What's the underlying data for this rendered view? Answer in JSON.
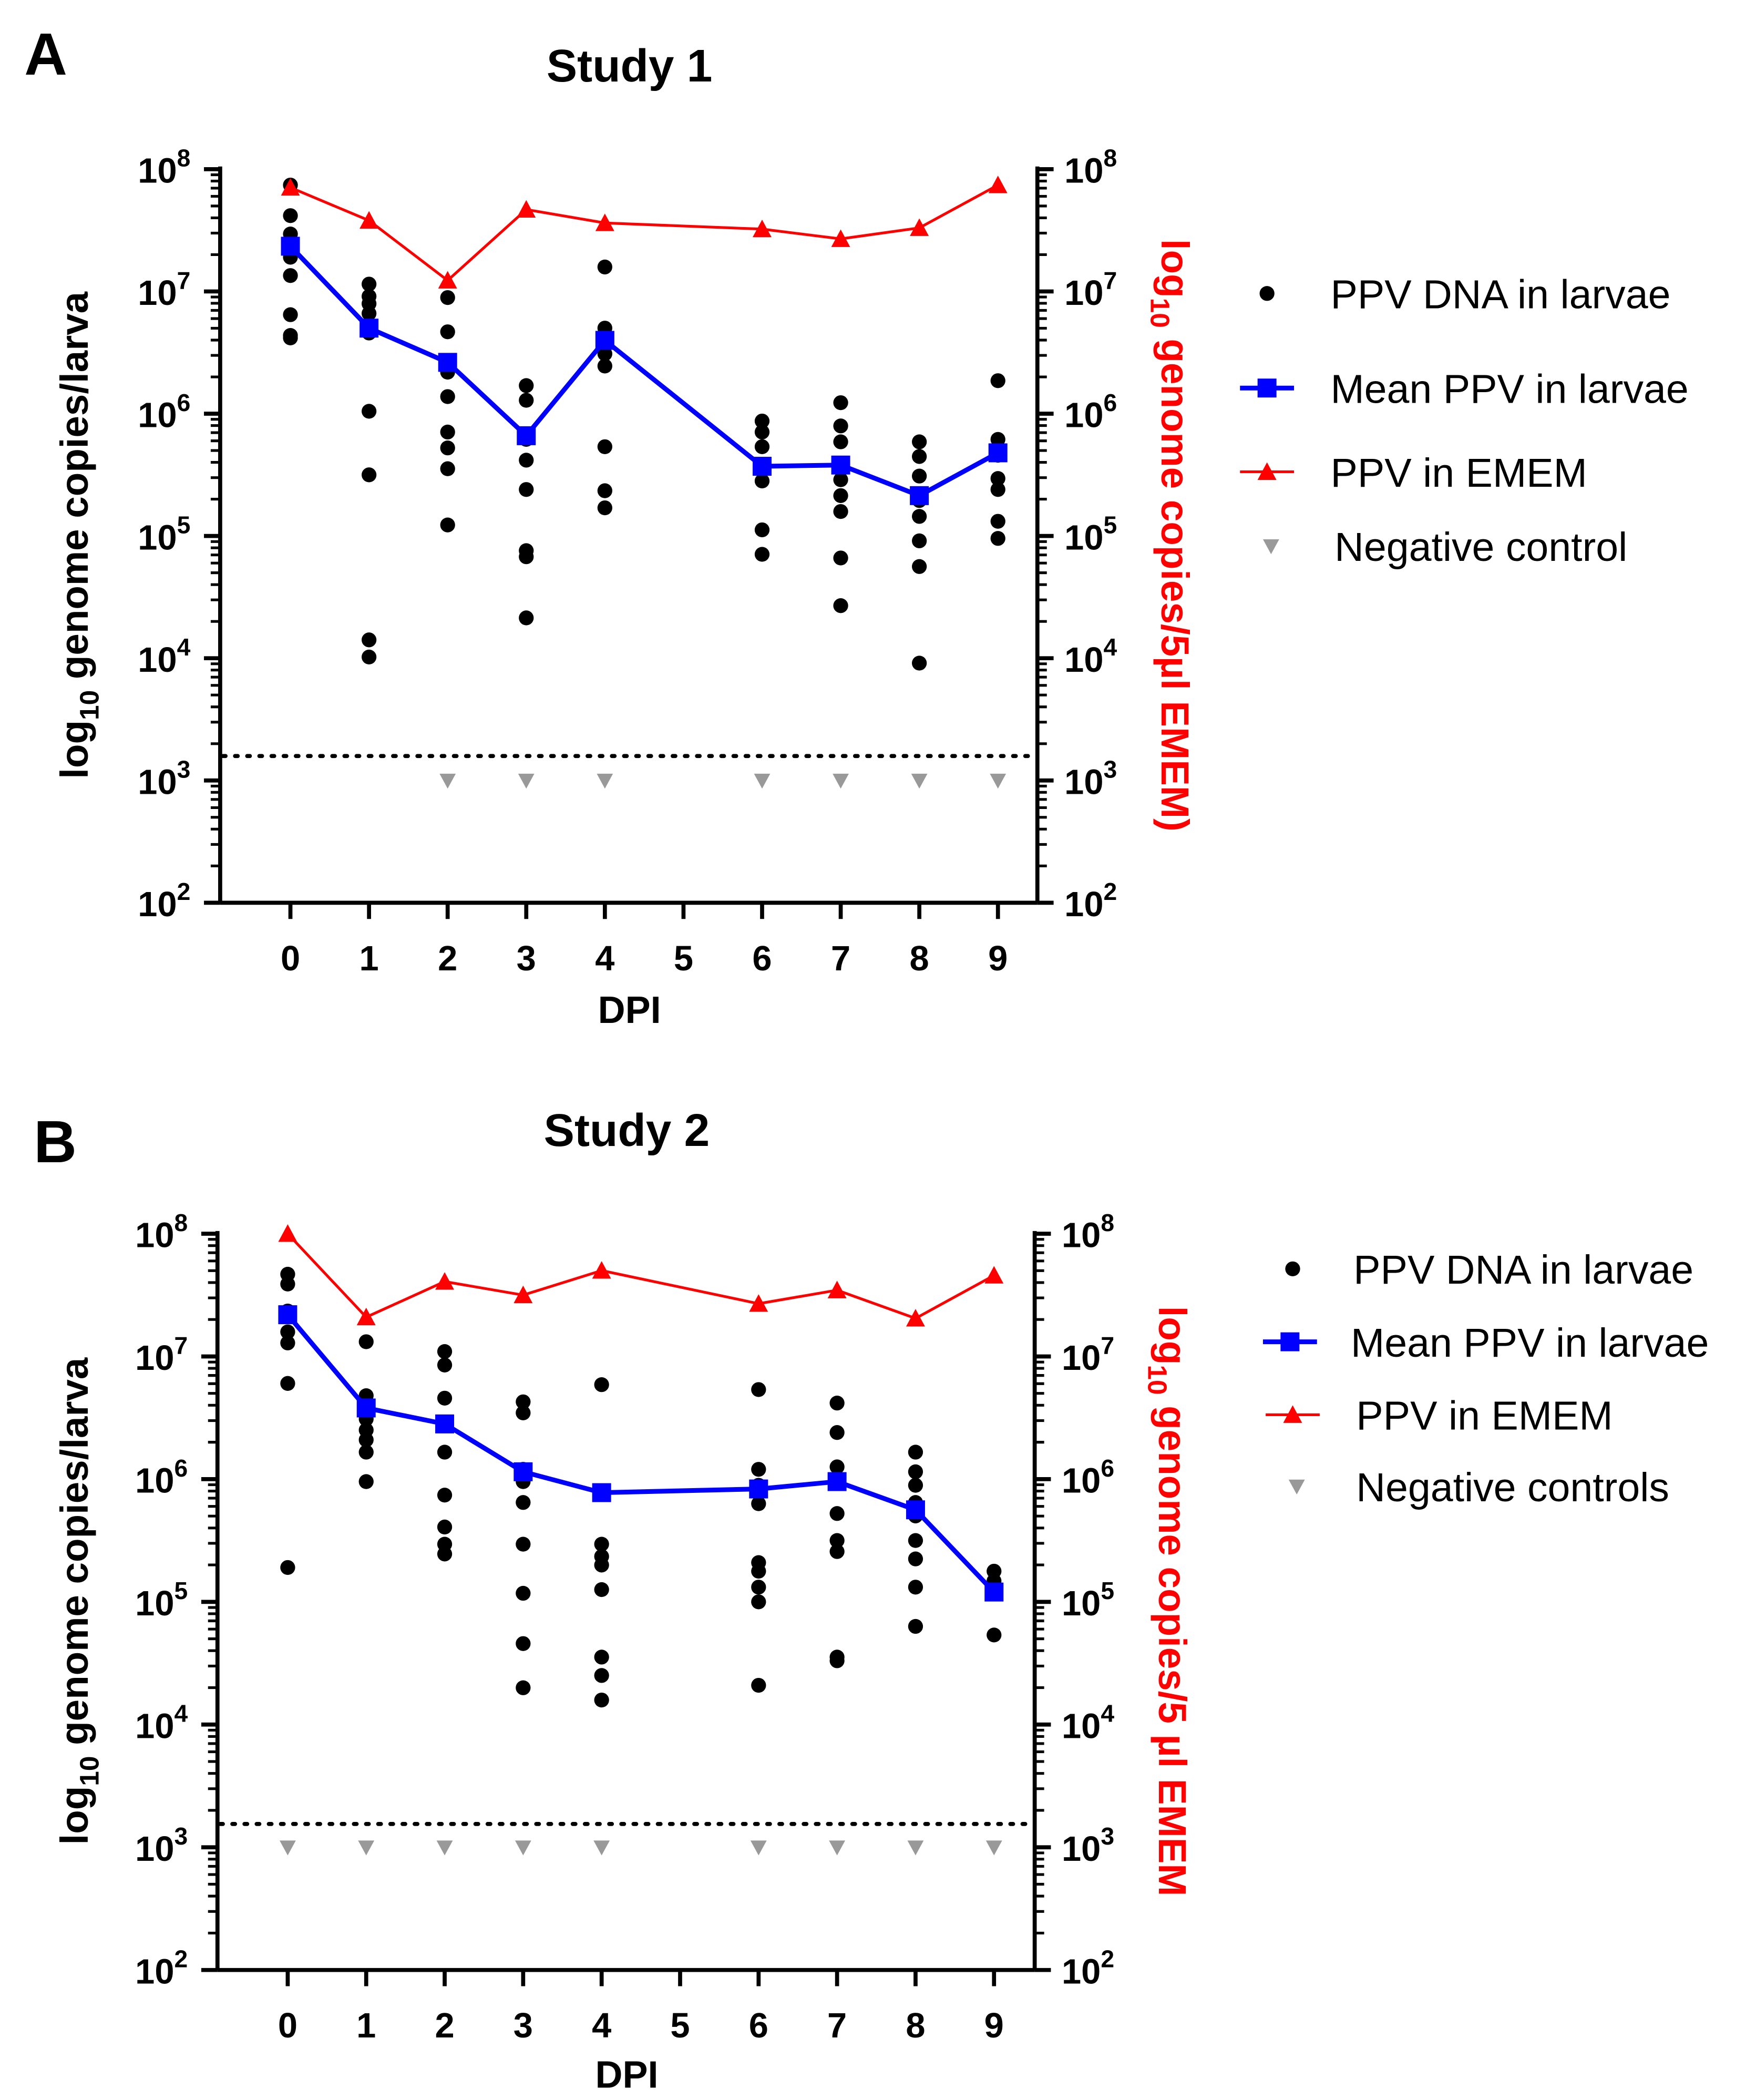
{
  "colors": {
    "points": "#000000",
    "mean": "#0000ff",
    "emem": "#ff0000",
    "negative": "#999999",
    "right_axis_label": "#ff0000"
  },
  "chart_data": [
    {
      "panel_letter": "A",
      "type": "scatter",
      "title": "Study 1",
      "xlabel": "DPI",
      "ylabel": {
        "prefix": "log",
        "sub": "10",
        "rest": " genome copies/larva"
      },
      "ylabel_right": {
        "prefix": "log",
        "sub": "10",
        "rest": " genome copies/5µl EMEM)"
      },
      "x_ticks": [
        "0",
        "1",
        "2",
        "3",
        "4",
        "5",
        "6",
        "7",
        "8",
        "9"
      ],
      "y_scale": "log",
      "ylim": [
        100,
        100000000
      ],
      "y_ticks": [
        {
          "base": "10",
          "exp": "2"
        },
        {
          "base": "10",
          "exp": "3"
        },
        {
          "base": "10",
          "exp": "4"
        },
        {
          "base": "10",
          "exp": "5"
        },
        {
          "base": "10",
          "exp": "6"
        },
        {
          "base": "10",
          "exp": "7"
        },
        {
          "base": "10",
          "exp": "8"
        }
      ],
      "detection_limit_log10": 3.2,
      "legend": [
        {
          "label": "PPV DNA in larvae",
          "marker": "circle"
        },
        {
          "label": "Mean PPV in larvae",
          "marker": "square-line"
        },
        {
          "label": "PPV in EMEM",
          "marker": "triangle-line"
        },
        {
          "label": "Negative control",
          "marker": "triangle-down"
        }
      ],
      "series": {
        "larvae_log10": {
          "0": [
            7.87,
            7.62,
            7.47,
            7.36,
            7.28,
            7.13,
            6.81,
            6.64,
            6.62
          ],
          "1": [
            7.06,
            6.96,
            6.9,
            6.82,
            6.66,
            6.02,
            5.5,
            4.15,
            4.01
          ],
          "2": [
            6.95,
            6.67,
            6.34,
            6.14,
            5.85,
            5.72,
            5.55,
            5.09
          ],
          "3": [
            6.23,
            6.11,
            5.79,
            5.62,
            5.38,
            4.88,
            4.83,
            4.33
          ],
          "4": [
            7.2,
            6.7,
            6.62,
            6.49,
            6.39,
            5.73,
            5.37,
            5.23
          ],
          "6": [
            5.94,
            5.85,
            5.73,
            5.58,
            5.45,
            5.05,
            4.85
          ],
          "7": [
            6.09,
            5.9,
            5.77,
            5.57,
            5.46,
            5.33,
            5.2,
            4.82,
            4.43
          ],
          "8": [
            5.77,
            5.65,
            5.49,
            5.29,
            5.16,
            4.96,
            4.75,
            3.96
          ],
          "9": [
            6.27,
            5.79,
            5.66,
            5.47,
            5.38,
            5.12,
            4.98
          ]
        },
        "mean_log10": {
          "x": [
            0,
            1,
            2,
            3,
            4,
            6,
            7,
            8,
            9
          ],
          "y": [
            7.37,
            6.7,
            6.42,
            5.82,
            6.6,
            5.57,
            5.58,
            5.33,
            5.68
          ]
        },
        "emem_log10": {
          "x": [
            0,
            1,
            2,
            3,
            4,
            6,
            7,
            8,
            9
          ],
          "y": [
            7.85,
            7.58,
            7.09,
            7.67,
            7.56,
            7.51,
            7.43,
            7.52,
            7.87
          ]
        },
        "negative_log10": {
          "x": [
            2,
            3,
            4,
            6,
            7,
            8,
            9
          ],
          "y": [
            3.0,
            3.0,
            3.0,
            3.0,
            3.0,
            3.0,
            3.0
          ]
        }
      }
    },
    {
      "panel_letter": "B",
      "type": "scatter",
      "title": "Study 2",
      "xlabel": "DPI",
      "ylabel": {
        "prefix": "log",
        "sub": "10",
        "rest": " genome copies/larva"
      },
      "ylabel_right": {
        "prefix": "log",
        "sub": "10",
        "rest": " genome copies/5 µl EMEM"
      },
      "x_ticks": [
        "0",
        "1",
        "2",
        "3",
        "4",
        "5",
        "6",
        "7",
        "8",
        "9"
      ],
      "y_scale": "log",
      "ylim": [
        100,
        100000000
      ],
      "y_ticks": [
        {
          "base": "10",
          "exp": "2"
        },
        {
          "base": "10",
          "exp": "3"
        },
        {
          "base": "10",
          "exp": "4"
        },
        {
          "base": "10",
          "exp": "5"
        },
        {
          "base": "10",
          "exp": "6"
        },
        {
          "base": "10",
          "exp": "7"
        },
        {
          "base": "10",
          "exp": "8"
        }
      ],
      "detection_limit_log10": 3.19,
      "legend": [
        {
          "label": "PPV DNA in larvae",
          "marker": "circle"
        },
        {
          "label": "Mean PPV in larvae",
          "marker": "square-line"
        },
        {
          "label": "PPV in EMEM",
          "marker": "triangle-line"
        },
        {
          "label": "Negative controls",
          "marker": "triangle-down"
        }
      ],
      "series": {
        "larvae_log10": {
          "0": [
            7.67,
            7.59,
            7.37,
            7.2,
            7.11,
            6.78,
            5.28
          ],
          "1": [
            7.12,
            6.68,
            6.58,
            6.49,
            6.4,
            6.32,
            6.22,
            5.98
          ],
          "2": [
            7.04,
            6.93,
            6.66,
            6.44,
            6.22,
            5.87,
            5.61,
            5.47,
            5.39
          ],
          "3": [
            6.63,
            6.54,
            6.08,
            5.98,
            5.81,
            5.47,
            5.07,
            4.66,
            4.3
          ],
          "4": [
            6.77,
            5.47,
            5.37,
            5.3,
            5.1,
            4.55,
            4.4,
            4.2
          ],
          "6": [
            6.73,
            6.08,
            5.95,
            5.8,
            5.32,
            5.25,
            5.12,
            5.0,
            4.32
          ],
          "7": [
            6.62,
            6.38,
            6.1,
            5.72,
            5.5,
            5.41,
            4.55,
            4.52
          ],
          "8": [
            6.22,
            6.06,
            5.95,
            5.81,
            5.7,
            5.5,
            5.35,
            5.12,
            4.8
          ],
          "9": [
            5.25,
            5.17,
            5.08,
            4.73
          ]
        },
        "mean_log10": {
          "x": [
            0,
            1,
            2,
            3,
            4,
            6,
            7,
            8,
            9
          ],
          "y": [
            7.34,
            6.58,
            6.45,
            6.06,
            5.89,
            5.92,
            5.98,
            5.75,
            5.08
          ]
        },
        "emem_log10": {
          "x": [
            0,
            1,
            2,
            3,
            4,
            6,
            7,
            8,
            9
          ],
          "y": [
            8.0,
            7.32,
            7.61,
            7.5,
            7.7,
            7.43,
            7.54,
            7.31,
            7.66
          ]
        },
        "negative_log10": {
          "x": [
            0,
            1,
            2,
            3,
            4,
            6,
            7,
            8,
            9
          ],
          "y": [
            3.0,
            3.0,
            3.0,
            3.0,
            3.0,
            3.0,
            3.0,
            3.0,
            3.0
          ]
        }
      }
    }
  ]
}
